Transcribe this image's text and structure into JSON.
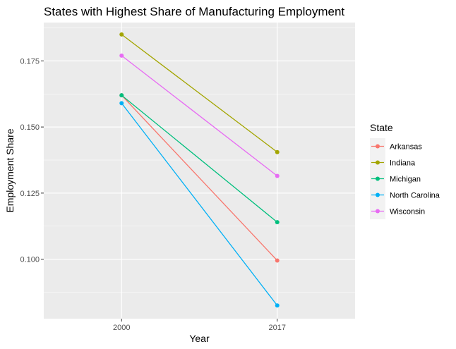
{
  "chart_data": {
    "type": "line",
    "title": "States with Highest Share of Manufacturing Employment",
    "xlabel": "Year",
    "ylabel": "Employment Share",
    "categories": [
      "2000",
      "2017"
    ],
    "ylim": [
      0.0775,
      0.1895
    ],
    "yticks": [
      0.1,
      0.125,
      0.15,
      0.175
    ],
    "ytick_labels": [
      "0.100",
      "0.125",
      "0.150",
      "0.175"
    ],
    "grid": true,
    "legend_title": "State",
    "legend_position": "right",
    "series": [
      {
        "name": "Arkansas",
        "color": "#F8766D",
        "values": [
          0.162,
          0.0995
        ]
      },
      {
        "name": "Indiana",
        "color": "#A3A500",
        "values": [
          0.185,
          0.1405
        ]
      },
      {
        "name": "Michigan",
        "color": "#00BF7D",
        "values": [
          0.162,
          0.114
        ]
      },
      {
        "name": "North Carolina",
        "color": "#00B0F6",
        "values": [
          0.159,
          0.0825
        ]
      },
      {
        "name": "Wisconsin",
        "color": "#E76BF3",
        "values": [
          0.177,
          0.1315
        ]
      }
    ]
  }
}
